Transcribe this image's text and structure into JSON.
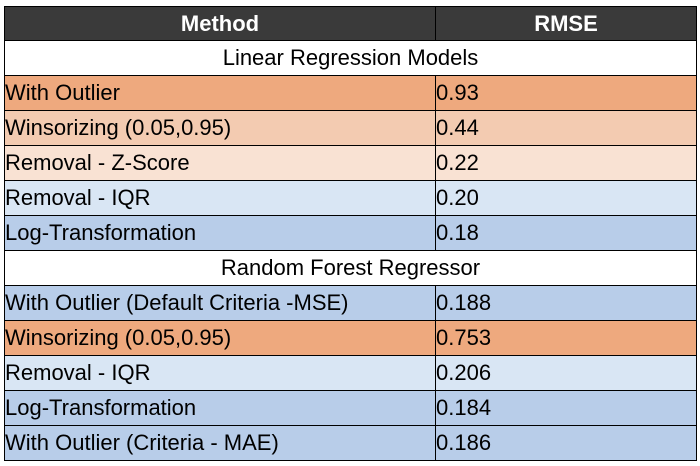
{
  "table": {
    "columns": [
      "Method",
      "RMSE"
    ],
    "sections": [
      {
        "title": "Linear Regression Models",
        "rows": [
          {
            "method": "With Outlier",
            "rmse": "0.93",
            "shade": 1
          },
          {
            "method": "Winsorizing (0.05,0.95)",
            "rmse": "0.44",
            "shade": 2
          },
          {
            "method": "Removal - Z-Score",
            "rmse": "0.22",
            "shade": 3
          },
          {
            "method": "Removal - IQR",
            "rmse": "0.20",
            "shade": 4
          },
          {
            "method": "Log-Transformation",
            "rmse": "0.18",
            "shade": 5
          }
        ]
      },
      {
        "title": "Random Forest Regressor",
        "rows": [
          {
            "method": "With Outlier (Default Criteria -MSE)",
            "rmse": "0.188",
            "shade": 5
          },
          {
            "method": "Winsorizing (0.05,0.95)",
            "rmse": "0.753",
            "shade": 1
          },
          {
            "method": "Removal - IQR",
            "rmse": "0.206",
            "shade": 4
          },
          {
            "method": "Log-Transformation",
            "rmse": "0.184",
            "shade": 5
          },
          {
            "method": "With Outlier (Criteria - MAE)",
            "rmse": "0.186",
            "shade": 5
          }
        ]
      }
    ]
  },
  "colors": {
    "header_bg": "#3a3a3a",
    "shade_1": "#eea97e",
    "shade_2": "#f3cbb1",
    "shade_3": "#f9e2d3",
    "shade_4": "#d9e6f4",
    "shade_5": "#b8cde9"
  }
}
